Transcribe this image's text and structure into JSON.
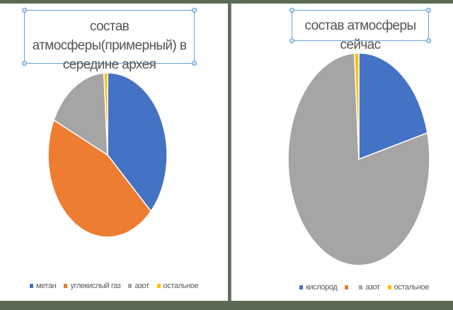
{
  "chart_data": [
    {
      "type": "pie",
      "title": "состав атмосферы(примерный) в середине архея",
      "categories": [
        "метан",
        "углекислый газ",
        "азот",
        "остальное"
      ],
      "values": [
        37,
        45,
        17,
        1
      ],
      "colors": [
        "#4472c4",
        "#ed7d31",
        "#a5a5a5",
        "#ffc000"
      ],
      "legend_position": "bottom",
      "start_angle": 0,
      "direction": "clockwise"
    },
    {
      "type": "pie",
      "title": "состав атмосферы сейчас",
      "categories": [
        "кислород",
        "",
        "азот",
        "остальное"
      ],
      "values": [
        21,
        0,
        78,
        1
      ],
      "colors": [
        "#4472c4",
        "#ed7d31",
        "#a5a5a5",
        "#ffc000"
      ],
      "legend_position": "bottom",
      "start_angle": 0,
      "direction": "clockwise"
    }
  ],
  "left": {
    "title": "состав атмосферы(примерный) в середине архея",
    "title_line1": "состав атмосферы(примерный) в",
    "title_line2": "середине архея",
    "legend": [
      {
        "label": "метан",
        "color": "#4472c4"
      },
      {
        "label": "углекислый газ",
        "color": "#ed7d31"
      },
      {
        "label": "азот",
        "color": "#a5a5a5"
      },
      {
        "label": "остальное",
        "color": "#ffc000"
      }
    ]
  },
  "right": {
    "title": "состав атмосферы сейчас",
    "legend": [
      {
        "label": "кислород",
        "color": "#4472c4"
      },
      {
        "label": "",
        "color": "#ed7d31"
      },
      {
        "label": "азот",
        "color": "#a5a5a5"
      },
      {
        "label": "остальное",
        "color": "#ffc000"
      }
    ]
  },
  "colors": {
    "background": "#5a6b55",
    "panel": "#ffffff",
    "selection": "#5b9bd5",
    "text": "#595959"
  }
}
